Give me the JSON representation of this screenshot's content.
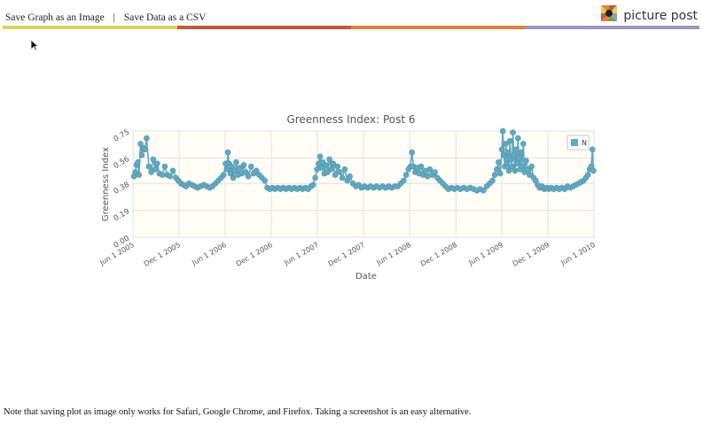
{
  "toolbar": {
    "save_image_label": "Save Graph as an Image",
    "separator": "|",
    "save_csv_label": "Save Data as a CSV"
  },
  "brand": {
    "name": "picture post",
    "stripe_colors": [
      "#d4d855",
      "#c9553f",
      "#e0843a",
      "#9b97c4"
    ]
  },
  "icons": {
    "logo": "picture-post-logo-icon",
    "cursor": "mouse-pointer-icon"
  },
  "colors": {
    "series": "#62a9c1",
    "series_stroke": "#4a93ad"
  },
  "note": "Note that saving plot as image only works for Safari, Google Chrome, and Firefox. Taking a screenshot is an easy alternative.",
  "chart_data": {
    "type": "scatter",
    "title": "Greenness Index: Post 6",
    "xlabel": "Date",
    "ylabel": "Greenness Index",
    "ylim": [
      0,
      0.75
    ],
    "xlim": [
      "2005-06-01",
      "2010-06-01"
    ],
    "yticks": [
      "0.00",
      "0.19",
      "0.38",
      "0.56",
      "0.75"
    ],
    "xticks": [
      {
        "date": "2005-06-01",
        "label": "Jun 1 2005"
      },
      {
        "date": "2005-12-01",
        "label": "Dec 1 2005"
      },
      {
        "date": "2006-06-01",
        "label": "Jun 1 2006"
      },
      {
        "date": "2006-12-01",
        "label": "Dec 1 2006"
      },
      {
        "date": "2007-06-01",
        "label": "Jun 1 2007"
      },
      {
        "date": "2007-12-01",
        "label": "Dec 1 2007"
      },
      {
        "date": "2008-06-01",
        "label": "Jun 1 2008"
      },
      {
        "date": "2008-12-01",
        "label": "Dec 1 2008"
      },
      {
        "date": "2009-06-01",
        "label": "Jun 1 2009"
      },
      {
        "date": "2009-12-01",
        "label": "Dec 1 2009"
      },
      {
        "date": "2010-06-01",
        "label": "Jun 1 2010"
      }
    ],
    "grid": true,
    "legend_position": "top-right",
    "series": [
      {
        "name": "N",
        "points": [
          [
            "2005-06-05",
            0.43
          ],
          [
            "2005-06-10",
            0.46
          ],
          [
            "2005-06-15",
            0.51
          ],
          [
            "2005-06-20",
            0.53
          ],
          [
            "2005-06-25",
            0.44
          ],
          [
            "2005-07-01",
            0.66
          ],
          [
            "2005-07-06",
            0.58
          ],
          [
            "2005-07-12",
            0.63
          ],
          [
            "2005-07-18",
            0.62
          ],
          [
            "2005-07-25",
            0.7
          ],
          [
            "2005-08-03",
            0.5
          ],
          [
            "2005-08-12",
            0.46
          ],
          [
            "2005-08-20",
            0.55
          ],
          [
            "2005-08-28",
            0.48
          ],
          [
            "2005-09-05",
            0.52
          ],
          [
            "2005-09-14",
            0.45
          ],
          [
            "2005-09-25",
            0.44
          ],
          [
            "2005-10-05",
            0.5
          ],
          [
            "2005-10-15",
            0.44
          ],
          [
            "2005-10-26",
            0.43
          ],
          [
            "2005-11-06",
            0.47
          ],
          [
            "2005-11-18",
            0.42
          ],
          [
            "2005-11-28",
            0.4
          ],
          [
            "2005-12-08",
            0.38
          ],
          [
            "2005-12-18",
            0.37
          ],
          [
            "2005-12-28",
            0.36
          ],
          [
            "2006-01-08",
            0.38
          ],
          [
            "2006-01-20",
            0.37
          ],
          [
            "2006-02-01",
            0.36
          ],
          [
            "2006-02-12",
            0.35
          ],
          [
            "2006-02-24",
            0.36
          ],
          [
            "2006-03-08",
            0.37
          ],
          [
            "2006-03-20",
            0.36
          ],
          [
            "2006-04-01",
            0.35
          ],
          [
            "2006-04-12",
            0.36
          ],
          [
            "2006-04-24",
            0.38
          ],
          [
            "2006-05-05",
            0.4
          ],
          [
            "2006-05-16",
            0.42
          ],
          [
            "2006-05-26",
            0.44
          ],
          [
            "2006-06-03",
            0.52
          ],
          [
            "2006-06-08",
            0.48
          ],
          [
            "2006-06-12",
            0.6
          ],
          [
            "2006-06-17",
            0.52
          ],
          [
            "2006-06-22",
            0.45
          ],
          [
            "2006-06-27",
            0.5
          ],
          [
            "2006-07-03",
            0.42
          ],
          [
            "2006-07-09",
            0.47
          ],
          [
            "2006-07-15",
            0.53
          ],
          [
            "2006-07-22",
            0.44
          ],
          [
            "2006-07-29",
            0.49
          ],
          [
            "2006-08-06",
            0.45
          ],
          [
            "2006-08-14",
            0.51
          ],
          [
            "2006-08-22",
            0.46
          ],
          [
            "2006-09-01",
            0.43
          ],
          [
            "2006-09-12",
            0.5
          ],
          [
            "2006-09-22",
            0.45
          ],
          [
            "2006-10-03",
            0.47
          ],
          [
            "2006-10-14",
            0.44
          ],
          [
            "2006-10-25",
            0.42
          ],
          [
            "2006-11-05",
            0.4
          ],
          [
            "2006-11-15",
            0.35
          ],
          [
            "2006-11-25",
            0.34
          ],
          [
            "2006-12-05",
            0.35
          ],
          [
            "2006-12-15",
            0.34
          ],
          [
            "2006-12-26",
            0.35
          ],
          [
            "2007-01-06",
            0.34
          ],
          [
            "2007-01-17",
            0.35
          ],
          [
            "2007-01-28",
            0.34
          ],
          [
            "2007-02-08",
            0.35
          ],
          [
            "2007-02-19",
            0.34
          ],
          [
            "2007-03-02",
            0.35
          ],
          [
            "2007-03-13",
            0.34
          ],
          [
            "2007-03-24",
            0.35
          ],
          [
            "2007-04-04",
            0.34
          ],
          [
            "2007-04-15",
            0.35
          ],
          [
            "2007-04-26",
            0.34
          ],
          [
            "2007-05-07",
            0.36
          ],
          [
            "2007-05-16",
            0.37
          ],
          [
            "2007-05-24",
            0.42
          ],
          [
            "2007-05-31",
            0.48
          ],
          [
            "2007-06-06",
            0.52
          ],
          [
            "2007-06-12",
            0.57
          ],
          [
            "2007-06-17",
            0.49
          ],
          [
            "2007-06-23",
            0.53
          ],
          [
            "2007-06-29",
            0.45
          ],
          [
            "2007-07-05",
            0.51
          ],
          [
            "2007-07-12",
            0.46
          ],
          [
            "2007-07-19",
            0.55
          ],
          [
            "2007-07-26",
            0.48
          ],
          [
            "2007-08-03",
            0.52
          ],
          [
            "2007-08-11",
            0.44
          ],
          [
            "2007-08-20",
            0.5
          ],
          [
            "2007-08-29",
            0.46
          ],
          [
            "2007-09-08",
            0.42
          ],
          [
            "2007-09-18",
            0.48
          ],
          [
            "2007-09-28",
            0.4
          ],
          [
            "2007-10-08",
            0.43
          ],
          [
            "2007-10-20",
            0.38
          ],
          [
            "2007-11-01",
            0.36
          ],
          [
            "2007-11-12",
            0.37
          ],
          [
            "2007-11-24",
            0.35
          ],
          [
            "2007-12-05",
            0.36
          ],
          [
            "2007-12-17",
            0.35
          ],
          [
            "2007-12-29",
            0.36
          ],
          [
            "2008-01-10",
            0.35
          ],
          [
            "2008-01-22",
            0.36
          ],
          [
            "2008-02-03",
            0.35
          ],
          [
            "2008-02-15",
            0.36
          ],
          [
            "2008-02-27",
            0.35
          ],
          [
            "2008-03-10",
            0.36
          ],
          [
            "2008-03-22",
            0.35
          ],
          [
            "2008-04-03",
            0.36
          ],
          [
            "2008-04-15",
            0.36
          ],
          [
            "2008-04-27",
            0.38
          ],
          [
            "2008-05-08",
            0.4
          ],
          [
            "2008-05-18",
            0.44
          ],
          [
            "2008-05-27",
            0.48
          ],
          [
            "2008-06-04",
            0.5
          ],
          [
            "2008-06-10",
            0.6
          ],
          [
            "2008-06-16",
            0.5
          ],
          [
            "2008-06-23",
            0.46
          ],
          [
            "2008-06-30",
            0.49
          ],
          [
            "2008-07-08",
            0.45
          ],
          [
            "2008-07-16",
            0.5
          ],
          [
            "2008-07-24",
            0.44
          ],
          [
            "2008-08-02",
            0.47
          ],
          [
            "2008-08-11",
            0.43
          ],
          [
            "2008-08-20",
            0.48
          ],
          [
            "2008-08-30",
            0.44
          ],
          [
            "2008-09-09",
            0.46
          ],
          [
            "2008-09-19",
            0.42
          ],
          [
            "2008-09-29",
            0.4
          ],
          [
            "2008-10-10",
            0.38
          ],
          [
            "2008-10-21",
            0.36
          ],
          [
            "2008-11-01",
            0.34
          ],
          [
            "2008-11-13",
            0.35
          ],
          [
            "2008-11-25",
            0.34
          ],
          [
            "2008-12-07",
            0.35
          ],
          [
            "2008-12-19",
            0.34
          ],
          [
            "2009-01-01",
            0.35
          ],
          [
            "2009-01-14",
            0.34
          ],
          [
            "2009-01-27",
            0.35
          ],
          [
            "2009-02-09",
            0.34
          ],
          [
            "2009-02-22",
            0.33
          ],
          [
            "2009-03-07",
            0.34
          ],
          [
            "2009-03-20",
            0.33
          ],
          [
            "2009-04-02",
            0.36
          ],
          [
            "2009-04-14",
            0.38
          ],
          [
            "2009-04-25",
            0.4
          ],
          [
            "2009-05-04",
            0.44
          ],
          [
            "2009-05-12",
            0.48
          ],
          [
            "2009-05-19",
            0.53
          ],
          [
            "2009-05-26",
            0.45
          ],
          [
            "2009-06-01",
            0.62
          ],
          [
            "2009-06-05",
            0.75
          ],
          [
            "2009-06-09",
            0.58
          ],
          [
            "2009-06-13",
            0.5
          ],
          [
            "2009-06-17",
            0.66
          ],
          [
            "2009-06-21",
            0.52
          ],
          [
            "2009-06-25",
            0.6
          ],
          [
            "2009-06-29",
            0.47
          ],
          [
            "2009-07-03",
            0.68
          ],
          [
            "2009-07-07",
            0.55
          ],
          [
            "2009-07-11",
            0.5
          ],
          [
            "2009-07-15",
            0.74
          ],
          [
            "2009-07-19",
            0.58
          ],
          [
            "2009-07-23",
            0.47
          ],
          [
            "2009-07-27",
            0.62
          ],
          [
            "2009-07-31",
            0.52
          ],
          [
            "2009-08-04",
            0.7
          ],
          [
            "2009-08-08",
            0.56
          ],
          [
            "2009-08-12",
            0.48
          ],
          [
            "2009-08-16",
            0.6
          ],
          [
            "2009-08-20",
            0.5
          ],
          [
            "2009-08-25",
            0.66
          ],
          [
            "2009-08-30",
            0.46
          ],
          [
            "2009-09-05",
            0.54
          ],
          [
            "2009-09-12",
            0.48
          ],
          [
            "2009-09-19",
            0.44
          ],
          [
            "2009-09-27",
            0.5
          ],
          [
            "2009-10-05",
            0.42
          ],
          [
            "2009-10-13",
            0.4
          ],
          [
            "2009-10-21",
            0.37
          ],
          [
            "2009-10-29",
            0.35
          ],
          [
            "2009-11-07",
            0.36
          ],
          [
            "2009-11-16",
            0.34
          ],
          [
            "2009-11-25",
            0.35
          ],
          [
            "2009-12-04",
            0.34
          ],
          [
            "2009-12-14",
            0.35
          ],
          [
            "2009-12-24",
            0.34
          ],
          [
            "2010-01-04",
            0.35
          ],
          [
            "2010-01-14",
            0.34
          ],
          [
            "2010-01-25",
            0.35
          ],
          [
            "2010-02-05",
            0.34
          ],
          [
            "2010-02-16",
            0.36
          ],
          [
            "2010-02-27",
            0.35
          ],
          [
            "2010-03-10",
            0.36
          ],
          [
            "2010-03-21",
            0.37
          ],
          [
            "2010-04-01",
            0.38
          ],
          [
            "2010-04-11",
            0.39
          ],
          [
            "2010-04-21",
            0.4
          ],
          [
            "2010-04-30",
            0.42
          ],
          [
            "2010-05-08",
            0.44
          ],
          [
            "2010-05-15",
            0.48
          ],
          [
            "2010-05-21",
            0.5
          ],
          [
            "2010-05-26",
            0.62
          ],
          [
            "2010-05-30",
            0.47
          ]
        ]
      }
    ]
  }
}
